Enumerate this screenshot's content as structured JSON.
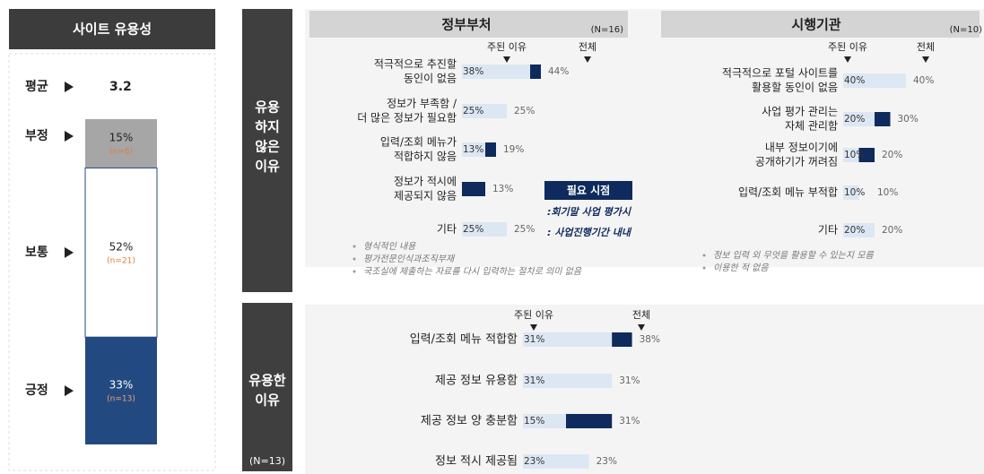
{
  "usability": {
    "title": "사이트 유용성",
    "average_label": "평균",
    "average": 3.2,
    "segments": [
      {
        "label": "부정",
        "value": 15,
        "value_label": "15%",
        "n": "(n=6)"
      },
      {
        "label": "보통",
        "value": 52,
        "value_label": "52%",
        "n": "(n=21)"
      },
      {
        "label": "긍정",
        "value": 33,
        "value_label": "33%",
        "n": "(n=13)"
      }
    ]
  },
  "not_useful": {
    "label": [
      "유용",
      "하지",
      "않은",
      "이유"
    ],
    "gov": {
      "title": "정부부처",
      "n": "(N=16)",
      "main_header": "주된 이유",
      "total_header": "전체",
      "rows": [
        {
          "label": [
            "적극적으로 추진할",
            "동인이 없음"
          ],
          "main": 38,
          "main_label": "38%",
          "total": 44,
          "total_label": "44%"
        },
        {
          "label": [
            "정보가 부족함 /",
            "더 많은 정보가 필요함"
          ],
          "main": 25,
          "main_label": "25%",
          "total": 25,
          "total_label": "25%"
        },
        {
          "label": [
            "입력/조회 메뉴가",
            "적합하지 않음"
          ],
          "main": 13,
          "main_label": "13%",
          "total": 19,
          "total_label": "19%"
        },
        {
          "label": [
            "정보가 적시에",
            "제공되지 않음"
          ],
          "main": null,
          "total": 13,
          "total_label": "13%"
        },
        {
          "label": [
            "기타"
          ],
          "main": 25,
          "main_label": "25%",
          "total": 25,
          "total_label": "25%"
        }
      ],
      "notes": [
        "형식적인 내용",
        "평가전문인식과조직부재",
        "국조실에 제출하는 자료를 다시 입력하는 절차로 의미 없음"
      ],
      "callout": {
        "title": "필요 시점",
        "items": [
          ":회기말 사업 평가시",
          ": 사업진행기간 내내"
        ]
      }
    },
    "agency": {
      "title": "시행기관",
      "n": "(N=10)",
      "main_header": "주된 이유",
      "total_header": "전체",
      "rows": [
        {
          "label": [
            "적극적으로 포털 사이트를",
            "활용할 동인이 없음"
          ],
          "main": 40,
          "main_label": "40%",
          "total": 40,
          "total_label": "40%"
        },
        {
          "label": [
            "사업 평가 관리는",
            "자체 관리함"
          ],
          "main": 20,
          "main_label": "20%",
          "total": 30,
          "total_label": "30%"
        },
        {
          "label": [
            "내부 정보이기에",
            "공개하기가 꺼려짐"
          ],
          "main": 10,
          "main_label": "10%",
          "total": 20,
          "total_label": "20%"
        },
        {
          "label": [
            "입력/조회 메뉴 부적합"
          ],
          "main": 10,
          "main_label": "10%",
          "total": 10,
          "total_label": "10%"
        },
        {
          "label": [
            "기타"
          ],
          "main": 20,
          "main_label": "20%",
          "total": 20,
          "total_label": "20%"
        }
      ],
      "notes": [
        "정보 입력 외 무엇을 활용할 수 있는지 모름",
        "이용한 적 없음"
      ]
    }
  },
  "useful": {
    "label": [
      "유용한",
      "이유"
    ],
    "n": "(N=13)",
    "main_header": "주된 이유",
    "total_header": "전체",
    "rows": [
      {
        "label": [
          "입력/조회 메뉴 적합함"
        ],
        "main": 31,
        "main_label": "31%",
        "total": 38,
        "total_label": "38%"
      },
      {
        "label": [
          "제공 정보 유용함"
        ],
        "main": 31,
        "main_label": "31%",
        "total": 31,
        "total_label": "31%"
      },
      {
        "label": [
          "제공 정보 양 충분함"
        ],
        "main": 15,
        "main_label": "15%",
        "total": 31,
        "total_label": "31%"
      },
      {
        "label": [
          "정보 적시 제공됨"
        ],
        "main": 23,
        "main_label": "23%",
        "total": 23,
        "total_label": "23%"
      }
    ]
  }
}
